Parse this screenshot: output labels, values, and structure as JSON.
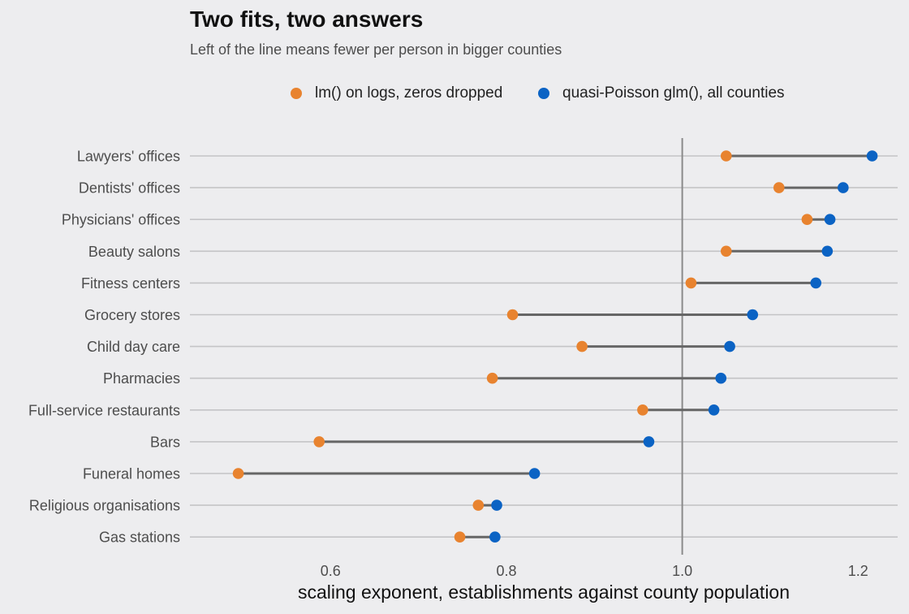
{
  "chart_data": {
    "type": "dumbbell",
    "title": "Two fits, two answers",
    "subtitle": "Left of the line means fewer per person in bigger counties",
    "xlabel": "scaling exponent, establishments against county population",
    "ylabel": "",
    "xlim": [
      0.44,
      1.245
    ],
    "xticks": [
      0.6,
      0.8,
      1.0,
      1.2
    ],
    "xtick_labels": [
      "0.6",
      "0.8",
      "1.0",
      "1.2"
    ],
    "reference_line": 1.0,
    "grid": "horizontal",
    "legend_position": "top",
    "categories": [
      "Lawyers' offices",
      "Dentists' offices",
      "Physicians' offices",
      "Beauty salons",
      "Fitness centers",
      "Grocery stores",
      "Child day care",
      "Pharmacies",
      "Full-service restaurants",
      "Bars",
      "Funeral homes",
      "Religious organisations",
      "Gas stations"
    ],
    "series": [
      {
        "name": "lm() on logs, zeros dropped",
        "color": "#e8832f",
        "values": [
          1.05,
          1.11,
          1.142,
          1.05,
          1.01,
          0.807,
          0.886,
          0.784,
          0.955,
          0.587,
          0.495,
          0.768,
          0.747
        ]
      },
      {
        "name": "quasi-Poisson glm(), all counties",
        "color": "#0b63c4",
        "values": [
          1.216,
          1.183,
          1.168,
          1.165,
          1.152,
          1.08,
          1.054,
          1.044,
          1.036,
          0.962,
          0.832,
          0.789,
          0.787
        ]
      }
    ]
  },
  "colors": {
    "background": "#ededef",
    "gridline": "#c4c4c6",
    "connector": "#666666",
    "reference_line": "#8a8a8a"
  }
}
